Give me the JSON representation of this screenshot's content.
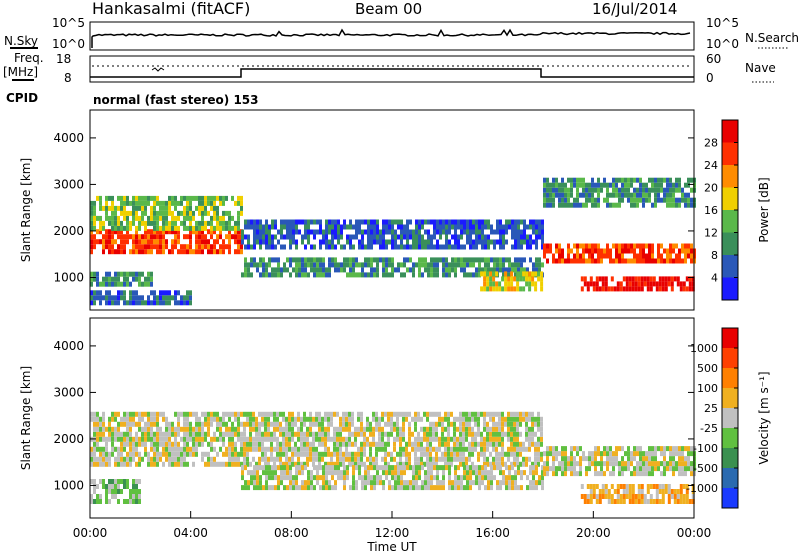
{
  "header": {
    "station": "Hankasalmi (fitACF)",
    "beam": "Beam 00",
    "date": "16/Jul/2014"
  },
  "noise_panel": {
    "left_label": "N.Sky",
    "left_ticks": [
      "10^5",
      "10^0"
    ],
    "right_ticks": [
      "10^5",
      "10^0"
    ],
    "right_label": "N.Search"
  },
  "freq_panel": {
    "left_label_1": "Freq.",
    "left_label_2": "[MHz]",
    "left_ticks": [
      "18",
      "8"
    ],
    "right_ticks": [
      "60",
      "0"
    ],
    "right_label": "Nave"
  },
  "cpid": {
    "label": "CPID",
    "value": "normal (fast stereo) 153"
  },
  "chart_data": [
    {
      "type": "heatmap",
      "name": "power",
      "ylabel": "Slant Range [km]",
      "yticks": [
        "1000",
        "2000",
        "3000",
        "4000"
      ],
      "ylim": [
        300,
        4600
      ],
      "colorbar": {
        "label": "Power [dB]",
        "ticks": [
          "4",
          "8",
          "12",
          "16",
          "20",
          "24",
          "28"
        ],
        "colors": [
          "#1a1aff",
          "#2a58b8",
          "#3a8f5a",
          "#5ab84a",
          "#f0d000",
          "#ff8c00",
          "#ff3000",
          "#e80000"
        ]
      },
      "bands": [
        {
          "t0": 0.0,
          "t1": 6.0,
          "r0": 1500,
          "r1": 2000,
          "level": 6
        },
        {
          "t0": 0.0,
          "t1": 6.0,
          "r0": 2000,
          "r1": 2700,
          "level": 3
        },
        {
          "t0": 0.0,
          "t1": 2.5,
          "r0": 800,
          "r1": 1100,
          "level": 2
        },
        {
          "t0": 0.0,
          "t1": 4.0,
          "r0": 400,
          "r1": 700,
          "level": 1
        },
        {
          "t0": 6.0,
          "t1": 18.0,
          "r0": 1600,
          "r1": 2200,
          "level": 1
        },
        {
          "t0": 6.0,
          "t1": 18.0,
          "r0": 1000,
          "r1": 1400,
          "level": 2
        },
        {
          "t0": 15.5,
          "t1": 18.0,
          "r0": 700,
          "r1": 1100,
          "level": 4
        },
        {
          "t0": 18.0,
          "t1": 24.0,
          "r0": 1300,
          "r1": 1700,
          "level": 6
        },
        {
          "t0": 19.5,
          "t1": 24.0,
          "r0": 700,
          "r1": 1000,
          "level": 7
        },
        {
          "t0": 18.0,
          "t1": 24.0,
          "r0": 2500,
          "r1": 3100,
          "level": 2
        }
      ]
    },
    {
      "type": "heatmap",
      "name": "velocity",
      "ylabel": "Slant Range [km]",
      "yticks": [
        "1000",
        "2000",
        "3000",
        "4000"
      ],
      "ylim": [
        300,
        4600
      ],
      "xlabel": "Time UT",
      "xticks": [
        "00:00",
        "04:00",
        "08:00",
        "12:00",
        "16:00",
        "20:00",
        "00:00"
      ],
      "xlim": [
        0,
        24
      ],
      "colorbar": {
        "label": "Velocity [m s⁻¹]",
        "ticks": [
          "1000",
          "500",
          "100",
          "25",
          "-25",
          "-100",
          "-500",
          "-1000"
        ],
        "colors": [
          "#1a3aff",
          "#2a6ab0",
          "#3a9050",
          "#60c040",
          "#c0c0c0",
          "#f0b020",
          "#ff8000",
          "#ff4000",
          "#e80000"
        ]
      },
      "bands": [
        {
          "t0": 0.0,
          "t1": 18.0,
          "r0": 1400,
          "r1": 2500,
          "level": 4
        },
        {
          "t0": 0.0,
          "t1": 2.0,
          "r0": 600,
          "r1": 1100,
          "level": 3
        },
        {
          "t0": 6.0,
          "t1": 18.0,
          "r0": 900,
          "r1": 1400,
          "level": 4
        },
        {
          "t0": 18.0,
          "t1": 24.0,
          "r0": 1200,
          "r1": 1800,
          "level": 4
        },
        {
          "t0": 19.5,
          "t1": 24.0,
          "r0": 600,
          "r1": 1000,
          "level": 5
        }
      ]
    }
  ]
}
